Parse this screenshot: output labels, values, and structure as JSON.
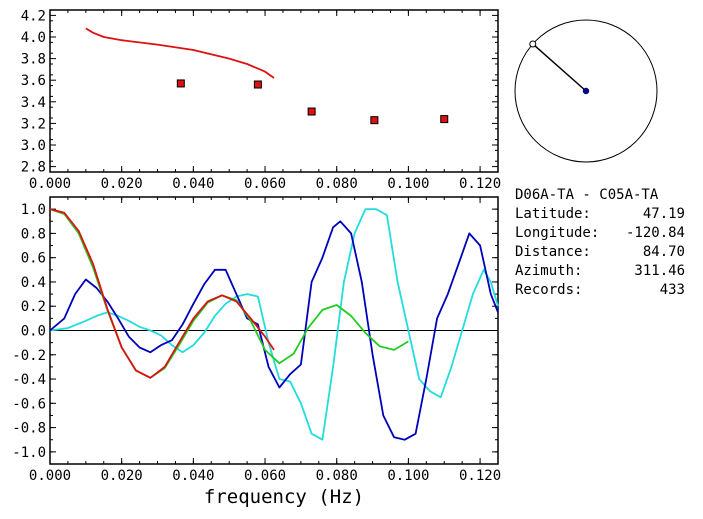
{
  "info": {
    "station_pair": "D06A-TA - C05A-TA",
    "rows": [
      {
        "label": "Latitude:",
        "value": "47.19"
      },
      {
        "label": "Longitude:",
        "value": "-120.84"
      },
      {
        "label": "Distance:",
        "value": "84.70"
      },
      {
        "label": "Azimuth:",
        "value": "311.46"
      },
      {
        "label": "Records:",
        "value": "433"
      }
    ]
  },
  "colors": {
    "red": "#dd1111",
    "green": "#22cc22",
    "blue": "#0000bb",
    "cyan": "#22dddd",
    "black": "#000000"
  },
  "azimuth_dial": {
    "azimuth_deg": 311.46
  },
  "chart_data": [
    {
      "type": "scatter",
      "xlim": [
        0.0,
        0.125
      ],
      "ylim": [
        2.75,
        4.25
      ],
      "xticks": [
        "0.000",
        "0.020",
        "0.040",
        "0.060",
        "0.080",
        "0.100",
        "0.120"
      ],
      "yticks": [
        "2.8",
        "3.0",
        "3.2",
        "3.4",
        "3.6",
        "3.8",
        "4.0",
        "4.2"
      ],
      "series": [
        {
          "kind": "line",
          "color": "red",
          "x": [
            0.01,
            0.012,
            0.015,
            0.02,
            0.03,
            0.04,
            0.05,
            0.055,
            0.06,
            0.0625
          ],
          "y": [
            4.08,
            4.04,
            4.0,
            3.97,
            3.93,
            3.88,
            3.8,
            3.75,
            3.68,
            3.62
          ]
        },
        {
          "kind": "points",
          "color": "red",
          "x": [
            0.0365,
            0.058,
            0.073,
            0.0905,
            0.11
          ],
          "y": [
            3.57,
            3.56,
            3.31,
            3.23,
            3.24
          ]
        }
      ]
    },
    {
      "type": "line",
      "xlabel": "frequency (Hz)",
      "xlim": [
        0.0,
        0.125
      ],
      "ylim": [
        -1.1,
        1.1
      ],
      "xticks": [
        "0.000",
        "0.020",
        "0.040",
        "0.060",
        "0.080",
        "0.100",
        "0.120"
      ],
      "yticks": [
        "1.0",
        "0.8",
        "0.6",
        "0.4",
        "0.2",
        "0.0",
        "-0.2",
        "-0.4",
        "-0.6",
        "-0.8",
        "-1.0"
      ],
      "series": [
        {
          "color": "red",
          "x": [
            0.0,
            0.004,
            0.008,
            0.012,
            0.016,
            0.02,
            0.024,
            0.028,
            0.032,
            0.036,
            0.04,
            0.044,
            0.048,
            0.052,
            0.056,
            0.06,
            0.0625
          ],
          "y": [
            1.0,
            0.97,
            0.82,
            0.55,
            0.18,
            -0.14,
            -0.33,
            -0.39,
            -0.3,
            -0.1,
            0.1,
            0.24,
            0.29,
            0.24,
            0.1,
            -0.05,
            -0.16
          ]
        },
        {
          "color": "green",
          "x": [
            0.0,
            0.004,
            0.008,
            0.012,
            0.016,
            0.02,
            0.024,
            0.028,
            0.032,
            0.036,
            0.04,
            0.044,
            0.048,
            0.052,
            0.056,
            0.06,
            0.064,
            0.068,
            0.072,
            0.076,
            0.08,
            0.084,
            0.088,
            0.092,
            0.096,
            0.1
          ],
          "y": [
            1.0,
            0.96,
            0.8,
            0.52,
            0.17,
            -0.14,
            -0.33,
            -0.39,
            -0.31,
            -0.12,
            0.08,
            0.23,
            0.29,
            0.25,
            0.08,
            -0.16,
            -0.27,
            -0.19,
            0.02,
            0.17,
            0.21,
            0.12,
            -0.02,
            -0.13,
            -0.16,
            -0.09
          ]
        },
        {
          "color": "blue",
          "x": [
            0.0,
            0.004,
            0.007,
            0.01,
            0.013,
            0.016,
            0.019,
            0.022,
            0.025,
            0.028,
            0.031,
            0.034,
            0.037,
            0.04,
            0.043,
            0.046,
            0.049,
            0.052,
            0.055,
            0.058,
            0.061,
            0.064,
            0.067,
            0.07,
            0.073,
            0.076,
            0.079,
            0.081,
            0.084,
            0.087,
            0.09,
            0.093,
            0.096,
            0.099,
            0.102,
            0.105,
            0.108,
            0.111,
            0.114,
            0.117,
            0.12,
            0.123,
            0.125
          ],
          "y": [
            0.0,
            0.1,
            0.3,
            0.42,
            0.35,
            0.24,
            0.1,
            -0.05,
            -0.14,
            -0.18,
            -0.12,
            -0.08,
            0.05,
            0.22,
            0.38,
            0.5,
            0.5,
            0.3,
            0.1,
            0.05,
            -0.3,
            -0.47,
            -0.36,
            -0.28,
            0.4,
            0.6,
            0.85,
            0.9,
            0.8,
            0.4,
            -0.2,
            -0.7,
            -0.88,
            -0.9,
            -0.85,
            -0.4,
            0.1,
            0.3,
            0.55,
            0.8,
            0.7,
            0.3,
            0.15
          ]
        },
        {
          "color": "cyan",
          "x": [
            0.0,
            0.005,
            0.01,
            0.013,
            0.016,
            0.019,
            0.022,
            0.025,
            0.028,
            0.031,
            0.034,
            0.037,
            0.04,
            0.043,
            0.046,
            0.049,
            0.052,
            0.055,
            0.058,
            0.061,
            0.064,
            0.067,
            0.07,
            0.073,
            0.076,
            0.079,
            0.082,
            0.085,
            0.088,
            0.091,
            0.094,
            0.097,
            0.1,
            0.103,
            0.106,
            0.109,
            0.112,
            0.115,
            0.118,
            0.121,
            0.123,
            0.125
          ],
          "y": [
            0.0,
            0.02,
            0.08,
            0.12,
            0.15,
            0.12,
            0.08,
            0.03,
            0.0,
            -0.04,
            -0.12,
            -0.18,
            -0.12,
            -0.02,
            0.12,
            0.22,
            0.28,
            0.3,
            0.28,
            -0.1,
            -0.4,
            -0.42,
            -0.6,
            -0.85,
            -0.9,
            -0.3,
            0.4,
            0.8,
            1.0,
            1.0,
            0.95,
            0.4,
            0.0,
            -0.4,
            -0.5,
            -0.55,
            -0.3,
            0.0,
            0.3,
            0.5,
            0.4,
            0.2
          ]
        }
      ]
    }
  ]
}
